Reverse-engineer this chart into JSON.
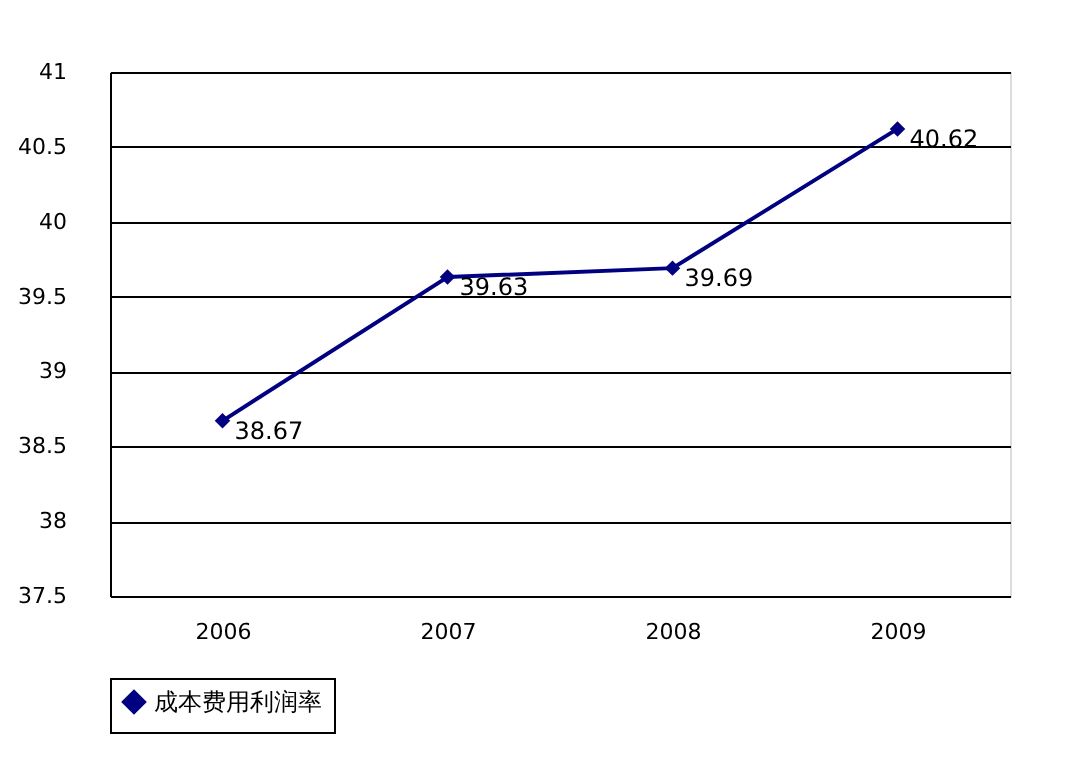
{
  "chart_data": {
    "type": "line",
    "categories": [
      "2006",
      "2007",
      "2008",
      "2009"
    ],
    "series": [
      {
        "name": "成本费用利润率",
        "color": "#000080",
        "values": [
          38.67,
          39.63,
          39.69,
          40.62
        ]
      }
    ],
    "ylim": [
      37.5,
      41
    ],
    "yticks": [
      37.5,
      38,
      38.5,
      39,
      39.5,
      40,
      40.5,
      41
    ],
    "grid": "y",
    "legend": "bottom",
    "marker": "diamond",
    "line_style": "solid",
    "data_labels": true
  }
}
